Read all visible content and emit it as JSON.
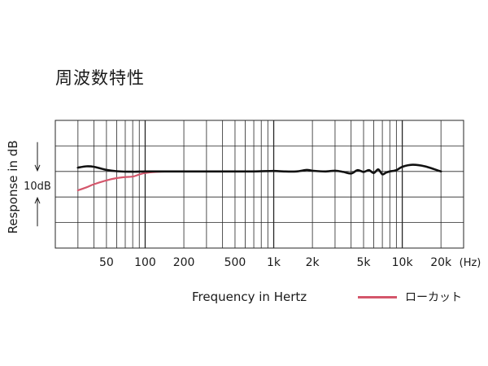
{
  "title": "周波数特性",
  "colors": {
    "background": "#ffffff",
    "grid": "#262626",
    "flat": "#111111",
    "lowcut": "#d4566b"
  },
  "chart_data": {
    "type": "line",
    "title": "周波数特性",
    "xlabel": "Frequency in Hertz",
    "ylabel": "Response in dB",
    "x_scale": "log",
    "xlim": [
      20,
      30000
    ],
    "ylim": [
      -30,
      20
    ],
    "grid": true,
    "legend_position": "bottom-right",
    "scale_marker": "10dB",
    "x_ticks": [
      {
        "value": 50,
        "label": "50"
      },
      {
        "value": 100,
        "label": "100"
      },
      {
        "value": 200,
        "label": "200"
      },
      {
        "value": 500,
        "label": "500"
      },
      {
        "value": 1000,
        "label": "1k"
      },
      {
        "value": 2000,
        "label": "2k"
      },
      {
        "value": 5000,
        "label": "5k"
      },
      {
        "value": 10000,
        "label": "10k"
      },
      {
        "value": 20000,
        "label": "20k"
      }
    ],
    "x_unit_label": "(Hz)",
    "series": [
      {
        "key": "flat",
        "x": [
          30,
          35,
          40,
          50,
          60,
          80,
          100,
          150,
          200,
          300,
          500,
          700,
          1000,
          1200,
          1500,
          1800,
          2000,
          2500,
          3000,
          3500,
          4000,
          4500,
          5000,
          5500,
          6000,
          6500,
          7000,
          7500,
          8000,
          9000,
          10000,
          12000,
          15000,
          20000
        ],
        "y": [
          1.5,
          2.0,
          1.8,
          0.6,
          0.1,
          -0.1,
          0.0,
          0.0,
          0.0,
          0.0,
          0.0,
          0.0,
          0.2,
          0.0,
          0.0,
          0.6,
          0.3,
          0.0,
          0.3,
          -0.2,
          -0.8,
          0.5,
          -0.2,
          0.5,
          -0.6,
          0.8,
          -1.1,
          -0.4,
          0.0,
          0.5,
          1.8,
          2.6,
          2.0,
          0.0
        ]
      },
      {
        "key": "lowcut",
        "name": "ローカット",
        "x": [
          30,
          35,
          40,
          50,
          60,
          70,
          80,
          90,
          100,
          120,
          150,
          200
        ],
        "y": [
          -7.4,
          -6.2,
          -5.0,
          -3.5,
          -2.6,
          -2.2,
          -2.0,
          -1.2,
          -0.6,
          -0.2,
          0.0,
          0.0
        ]
      }
    ]
  }
}
